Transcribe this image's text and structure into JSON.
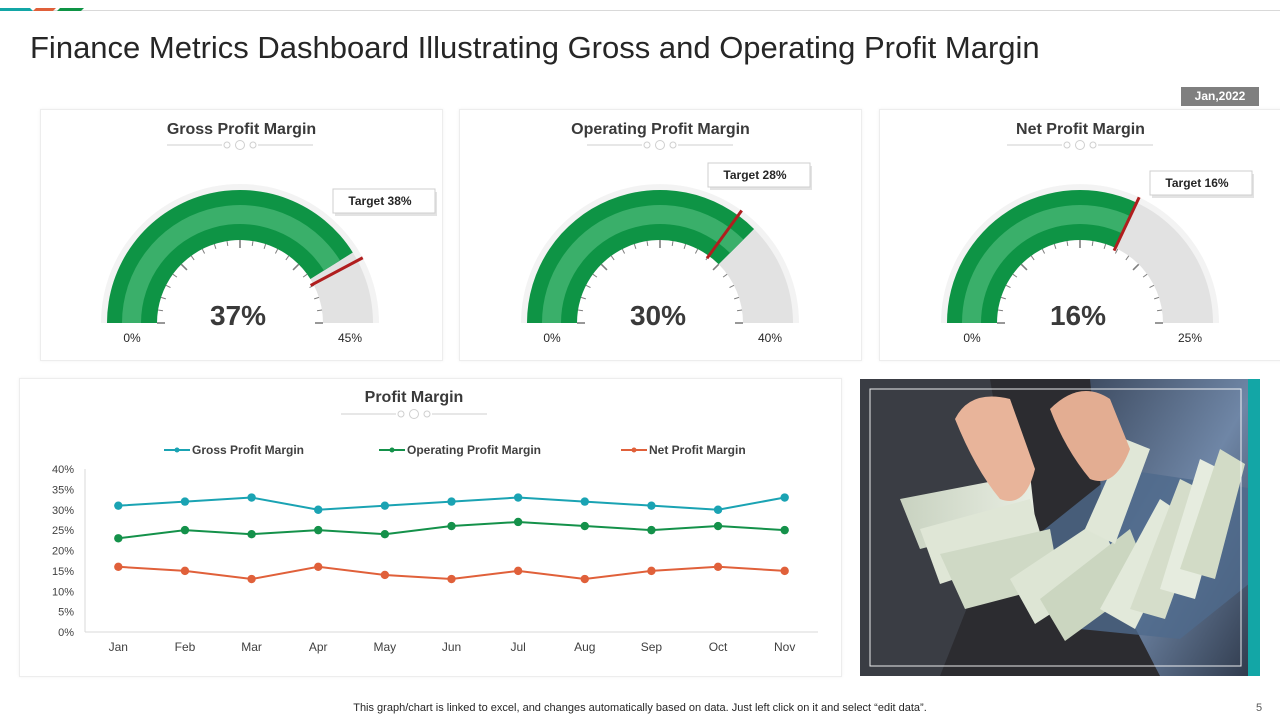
{
  "title": "Finance Metrics Dashboard Illustrating Gross and Operating Profit Margin",
  "date_badge": "Jan,2022",
  "colors": {
    "green": "#0e9445",
    "green_light": "#3aaf6a",
    "track": "#e2e2e2",
    "needle": "#b01e1e",
    "teal": "#13a6a6"
  },
  "gauges": [
    {
      "title": "Gross Profit Margin",
      "value": 37,
      "value_label": "37%",
      "target": 38,
      "target_label": "Target 38%",
      "max": 45,
      "min_label": "0%",
      "max_label": "45%"
    },
    {
      "title": "Operating Profit Margin",
      "value": 30,
      "value_label": "30%",
      "target": 28,
      "target_label": "Target 28%",
      "max": 40,
      "min_label": "0%",
      "max_label": "40%"
    },
    {
      "title": "Net Profit Margin",
      "value": 16,
      "value_label": "16%",
      "target": 16,
      "target_label": "Target 16%",
      "max": 25,
      "min_label": "0%",
      "max_label": "25%"
    }
  ],
  "chart_data": {
    "type": "line",
    "title": "Profit Margin",
    "categories": [
      "Jan",
      "Feb",
      "Mar",
      "Apr",
      "May",
      "Jun",
      "Jul",
      "Aug",
      "Sep",
      "Oct",
      "Nov"
    ],
    "series": [
      {
        "name": "Gross Profit Margin",
        "color": "#1aa3b3",
        "values": [
          31,
          32,
          33,
          30,
          31,
          32,
          33,
          32,
          31,
          30,
          33
        ]
      },
      {
        "name": "Operating Profit Margin",
        "color": "#14914a",
        "values": [
          23,
          25,
          24,
          25,
          24,
          26,
          27,
          26,
          25,
          26,
          25
        ]
      },
      {
        "name": "Net Profit Margin",
        "color": "#e0603a",
        "values": [
          16,
          15,
          13,
          16,
          14,
          13,
          15,
          13,
          15,
          16,
          15
        ]
      }
    ],
    "ylim": [
      0,
      40
    ],
    "yticks": [
      "0%",
      "5%",
      "10%",
      "15%",
      "20%",
      "25%",
      "30%",
      "35%",
      "40%"
    ],
    "legend": "top",
    "grid": false
  },
  "photo": {
    "icon": "money-cash-photo"
  },
  "footnote": "This graph/chart is linked to excel,  and changes automatically based on data. Just left click on it and select “edit data”.",
  "page_number": "5"
}
